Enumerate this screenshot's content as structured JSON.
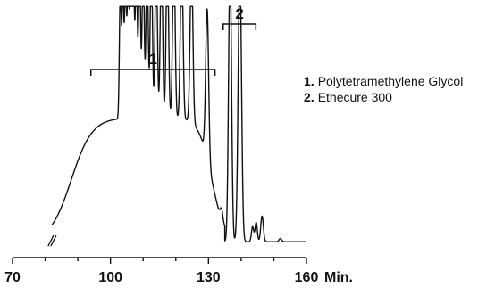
{
  "chart_data": {
    "type": "line",
    "title": "",
    "xlabel": "",
    "ylabel": "",
    "x_unit": "Min.",
    "xlim": [
      70,
      160
    ],
    "x_ticks": [
      70,
      100,
      130,
      160
    ],
    "y_axis_shown": false,
    "grid": false,
    "axis_break": true,
    "baseline": 0.02,
    "hump": {
      "start": 80,
      "center": 107,
      "width": 14,
      "height": 0.58,
      "end": 135
    },
    "peaks": [
      {
        "x": 103.0,
        "y": 0.6,
        "w": 0.28
      },
      {
        "x": 103.8,
        "y": 0.61,
        "w": 0.28
      },
      {
        "x": 104.6,
        "y": 0.63,
        "w": 0.28
      },
      {
        "x": 105.4,
        "y": 0.65,
        "w": 0.29
      },
      {
        "x": 106.2,
        "y": 0.67,
        "w": 0.29
      },
      {
        "x": 107.0,
        "y": 0.69,
        "w": 0.3
      },
      {
        "x": 107.9,
        "y": 0.71,
        "w": 0.3
      },
      {
        "x": 108.9,
        "y": 0.73,
        "w": 0.31
      },
      {
        "x": 110.0,
        "y": 0.75,
        "w": 0.32
      },
      {
        "x": 111.2,
        "y": 0.76,
        "w": 0.33
      },
      {
        "x": 112.5,
        "y": 0.77,
        "w": 0.34
      },
      {
        "x": 114.0,
        "y": 0.78,
        "w": 0.35
      },
      {
        "x": 115.6,
        "y": 0.79,
        "w": 0.36
      },
      {
        "x": 117.4,
        "y": 0.79,
        "w": 0.37
      },
      {
        "x": 119.4,
        "y": 0.8,
        "w": 0.38
      },
      {
        "x": 121.8,
        "y": 0.78,
        "w": 0.4
      },
      {
        "x": 124.8,
        "y": 0.76,
        "w": 0.42
      },
      {
        "x": 129.6,
        "y": 0.7,
        "w": 0.45
      },
      {
        "x": 134.0,
        "y": 0.05,
        "w": 0.4
      },
      {
        "x": 136.6,
        "y": 1.3,
        "w": 0.45
      },
      {
        "x": 139.6,
        "y": 1.3,
        "w": 0.5
      },
      {
        "x": 143.5,
        "y": 0.07,
        "w": 0.35
      },
      {
        "x": 144.6,
        "y": 0.09,
        "w": 0.35
      },
      {
        "x": 146.4,
        "y": 0.12,
        "w": 0.4
      },
      {
        "x": 152.0,
        "y": 0.015,
        "w": 0.4
      }
    ],
    "clip_ymax": 1.12,
    "groups": [
      {
        "label": "1",
        "x_start": 94,
        "x_end": 132
      },
      {
        "label": "2",
        "x_start": 134.5,
        "x_end": 144.5
      }
    ],
    "legend": [
      {
        "num": "1.",
        "name": "Polytetramethylene Glycol"
      },
      {
        "num": "2.",
        "name": "Ethecure 300"
      }
    ],
    "legend_position": "right"
  }
}
